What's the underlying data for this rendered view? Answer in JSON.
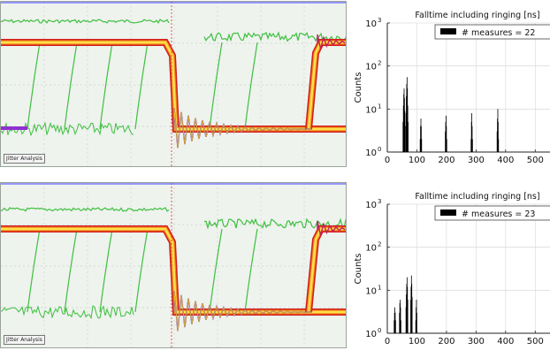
{
  "scopes": [
    {
      "label": "Jitter Analysis"
    },
    {
      "label": "Jitter Analysis"
    }
  ],
  "chart_data": [
    {
      "type": "bar",
      "title": "Falltime including ringing [ns]",
      "ylabel": "Counts",
      "xlim": [
        0,
        550
      ],
      "ylim_log10": [
        0,
        3
      ],
      "x_ticks": [
        "0",
        "100",
        "200",
        "300",
        "400",
        "500"
      ],
      "y_tick_bases": [
        "10",
        "10",
        "10",
        "10"
      ],
      "y_tick_exps": [
        "0",
        "1",
        "2",
        "3"
      ],
      "legend": {
        "label": "# measures = 22",
        "placement": "top-right"
      },
      "grid": true,
      "color": "#000000",
      "series": [
        {
          "x": 52,
          "counts": [
            5,
            12,
            22,
            30,
            18,
            9,
            4
          ]
        },
        {
          "x": 62,
          "counts": [
            8,
            20,
            38,
            55,
            30,
            12,
            5
          ]
        },
        {
          "x": 110,
          "counts": [
            2,
            4,
            6,
            4,
            2
          ]
        },
        {
          "x": 195,
          "counts": [
            3,
            5,
            7,
            4,
            2
          ]
        },
        {
          "x": 282,
          "counts": [
            2,
            5,
            8,
            4,
            2
          ]
        },
        {
          "x": 370,
          "counts": [
            3,
            6,
            10,
            5,
            2
          ]
        }
      ]
    },
    {
      "type": "bar",
      "title": "Falltime including ringing [ns]",
      "ylabel": "Counts",
      "xlim": [
        0,
        550
      ],
      "ylim_log10": [
        0,
        3
      ],
      "x_ticks": [
        "0",
        "100",
        "200",
        "300",
        "400",
        "500"
      ],
      "y_tick_bases": [
        "10",
        "10",
        "10",
        "10"
      ],
      "y_tick_exps": [
        "0",
        "1",
        "2",
        "3"
      ],
      "legend": {
        "label": "# measures = 23",
        "placement": "top-right"
      },
      "grid": true,
      "color": "#000000",
      "series": [
        {
          "x": 22,
          "counts": [
            2,
            3,
            4,
            3,
            2
          ]
        },
        {
          "x": 40,
          "counts": [
            3,
            5,
            6,
            4,
            2
          ]
        },
        {
          "x": 62,
          "counts": [
            4,
            8,
            14,
            20,
            12,
            6
          ]
        },
        {
          "x": 78,
          "counts": [
            6,
            12,
            22,
            14,
            7
          ]
        },
        {
          "x": 95,
          "counts": [
            2,
            4,
            6,
            3
          ]
        }
      ]
    }
  ]
}
